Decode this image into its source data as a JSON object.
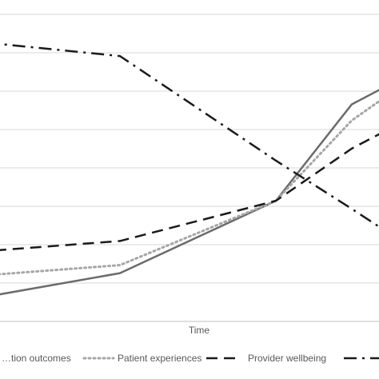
{
  "chart_data": {
    "type": "line",
    "title": "",
    "xlabel": "Time",
    "ylabel": "",
    "grid": true,
    "legend_position": "bottom",
    "x": [
      0,
      1,
      2,
      3,
      4
    ],
    "ylim": [
      0,
      7
    ],
    "series": [
      {
        "name": "…tion outcomes",
        "style": "solid",
        "color": "#6b6b6b",
        "values": [
          0.5,
          1.2,
          3.0,
          5.4,
          6.6
        ]
      },
      {
        "name": "Patient experiences",
        "style": "dotted",
        "color": "#a6a6a6",
        "values": [
          1.1,
          1.4,
          3.0,
          5.0,
          6.6
        ]
      },
      {
        "name": "Provider wellbeing",
        "style": "dashed",
        "color": "#1a1a1a",
        "values": [
          1.7,
          2.0,
          3.0,
          4.3,
          5.5
        ]
      },
      {
        "name": "",
        "style": "dashdot",
        "color": "#1a1a1a",
        "values": [
          7.0,
          6.6,
          4.0,
          2.8,
          1.3
        ]
      }
    ]
  }
}
